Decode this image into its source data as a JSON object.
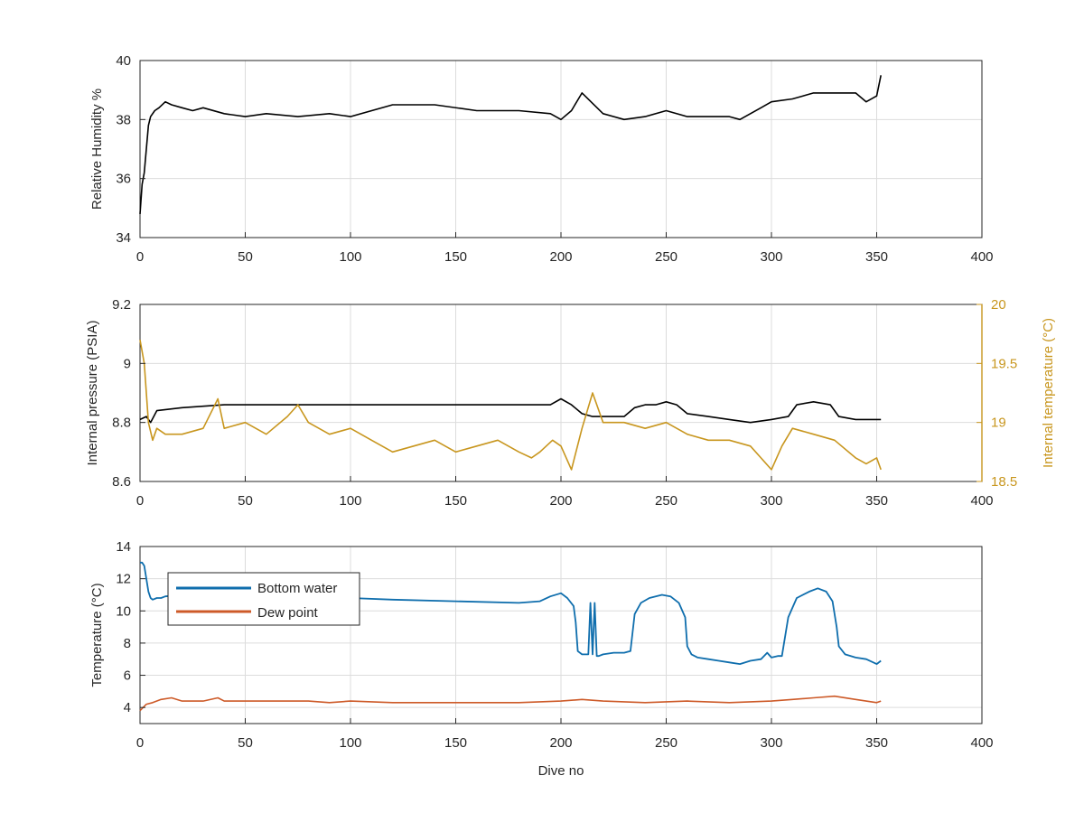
{
  "colors": {
    "humidity": "#000000",
    "pressure": "#000000",
    "internal_temp": "#c8961e",
    "bottom_water": "#0f6ead",
    "dew_point": "#cd5a28",
    "right_axis": "#c8961e"
  },
  "chart_data": [
    {
      "type": "line",
      "xlabel": "",
      "ylabel": "Relative Humidity %",
      "xlim": [
        0,
        400
      ],
      "ylim": [
        34,
        40
      ],
      "xticks": [
        0,
        50,
        100,
        150,
        200,
        250,
        300,
        350,
        400
      ],
      "yticks": [
        34,
        36,
        38,
        40
      ],
      "grid": true,
      "series": [
        {
          "x": [
            0,
            1,
            2,
            3,
            4,
            5,
            7,
            9,
            12,
            15,
            20,
            25,
            30,
            40,
            50,
            60,
            75,
            90,
            100,
            120,
            140,
            160,
            180,
            195,
            200,
            205,
            210,
            220,
            230,
            240,
            250,
            260,
            270,
            280,
            285,
            295,
            300,
            310,
            320,
            330,
            340,
            345,
            350,
            352
          ],
          "y": [
            34.8,
            35.8,
            36.2,
            37.0,
            37.8,
            38.1,
            38.3,
            38.4,
            38.6,
            38.5,
            38.4,
            38.3,
            38.4,
            38.2,
            38.1,
            38.2,
            38.1,
            38.2,
            38.1,
            38.5,
            38.5,
            38.3,
            38.3,
            38.2,
            38.0,
            38.3,
            38.9,
            38.2,
            38.0,
            38.1,
            38.3,
            38.1,
            38.1,
            38.1,
            38.0,
            38.4,
            38.6,
            38.7,
            38.9,
            38.9,
            38.9,
            38.6,
            38.8,
            39.5
          ]
        }
      ]
    },
    {
      "type": "line",
      "xlabel": "",
      "ylabel": "Internal pressure (PSIA)",
      "ylabel_right": "Internal temperature (°C)",
      "xlim": [
        0,
        400
      ],
      "ylim": [
        8.6,
        9.2
      ],
      "ylim_right": [
        18.5,
        20
      ],
      "xticks": [
        0,
        50,
        100,
        150,
        200,
        250,
        300,
        350,
        400
      ],
      "yticks": [
        8.6,
        8.8,
        9,
        9.2
      ],
      "yticks_labels": [
        "8.6",
        "8.8",
        "9",
        "9.2"
      ],
      "yticks_right": [
        18.5,
        19,
        19.5,
        20
      ],
      "yticks_right_labels": [
        "18.5",
        "19",
        "19.5",
        "20"
      ],
      "grid": true,
      "series": [
        {
          "axis": "left",
          "x": [
            0,
            3,
            5,
            8,
            20,
            40,
            60,
            80,
            100,
            120,
            140,
            160,
            180,
            195,
            200,
            205,
            210,
            215,
            230,
            235,
            240,
            245,
            250,
            255,
            260,
            270,
            280,
            290,
            300,
            308,
            312,
            320,
            328,
            332,
            340,
            352
          ],
          "y": [
            8.81,
            8.82,
            8.8,
            8.84,
            8.85,
            8.86,
            8.86,
            8.86,
            8.86,
            8.86,
            8.86,
            8.86,
            8.86,
            8.86,
            8.88,
            8.86,
            8.83,
            8.82,
            8.82,
            8.85,
            8.86,
            8.86,
            8.87,
            8.86,
            8.83,
            8.82,
            8.81,
            8.8,
            8.81,
            8.82,
            8.86,
            8.87,
            8.86,
            8.82,
            8.81,
            8.81
          ]
        },
        {
          "axis": "right",
          "x": [
            0,
            2,
            4,
            6,
            8,
            12,
            20,
            30,
            37,
            40,
            50,
            60,
            70,
            75,
            80,
            90,
            100,
            110,
            120,
            130,
            140,
            150,
            160,
            170,
            180,
            186,
            190,
            196,
            200,
            205,
            210,
            215,
            220,
            230,
            240,
            250,
            260,
            270,
            280,
            290,
            295,
            300,
            305,
            310,
            320,
            330,
            340,
            345,
            350,
            352
          ],
          "y": [
            19.7,
            19.5,
            19.0,
            18.85,
            18.95,
            18.9,
            18.9,
            18.95,
            19.2,
            18.95,
            19.0,
            18.9,
            19.05,
            19.15,
            19.0,
            18.9,
            18.95,
            18.85,
            18.75,
            18.8,
            18.85,
            18.75,
            18.8,
            18.85,
            18.75,
            18.7,
            18.75,
            18.85,
            18.8,
            18.6,
            18.95,
            19.25,
            19.0,
            19.0,
            18.95,
            19.0,
            18.9,
            18.85,
            18.85,
            18.8,
            18.7,
            18.6,
            18.8,
            18.95,
            18.9,
            18.85,
            18.7,
            18.65,
            18.7,
            18.6
          ]
        }
      ]
    },
    {
      "type": "line",
      "xlabel": "Dive no",
      "ylabel": "Temperature (°C)",
      "xlim": [
        0,
        400
      ],
      "ylim": [
        3,
        14
      ],
      "xticks": [
        0,
        50,
        100,
        150,
        200,
        250,
        300,
        350,
        400
      ],
      "yticks": [
        4,
        6,
        8,
        10,
        12,
        14
      ],
      "grid": true,
      "legend": "top-left",
      "series": [
        {
          "name": "Bottom water",
          "x": [
            0,
            1,
            2,
            3,
            4,
            5,
            6,
            8,
            10,
            12,
            20,
            30,
            40,
            50,
            60,
            80,
            100,
            120,
            150,
            180,
            190,
            195,
            200,
            203,
            206,
            207,
            208,
            210,
            213,
            214,
            215,
            216,
            217,
            218,
            220,
            225,
            230,
            233,
            235,
            238,
            242,
            248,
            252,
            256,
            259,
            260,
            262,
            265,
            270,
            275,
            280,
            285,
            290,
            295,
            298,
            300,
            303,
            305,
            308,
            312,
            318,
            322,
            326,
            329,
            331,
            332,
            335,
            340,
            345,
            350,
            352
          ],
          "y": [
            13.0,
            13.0,
            12.8,
            12.0,
            11.2,
            10.8,
            10.7,
            10.8,
            10.8,
            10.9,
            11.0,
            10.9,
            10.8,
            10.8,
            10.8,
            10.7,
            10.8,
            10.7,
            10.6,
            10.5,
            10.6,
            10.9,
            11.1,
            10.8,
            10.3,
            9.3,
            7.5,
            7.3,
            7.3,
            10.5,
            7.3,
            10.5,
            7.2,
            7.2,
            7.3,
            7.4,
            7.4,
            7.5,
            9.8,
            10.5,
            10.8,
            11.0,
            10.9,
            10.5,
            9.6,
            7.8,
            7.3,
            7.1,
            7.0,
            6.9,
            6.8,
            6.7,
            6.9,
            7.0,
            7.4,
            7.1,
            7.2,
            7.2,
            9.6,
            10.8,
            11.2,
            11.4,
            11.2,
            10.6,
            9.0,
            7.8,
            7.3,
            7.1,
            7.0,
            6.7,
            6.9
          ]
        },
        {
          "name": "Dew point",
          "x": [
            0,
            3,
            6,
            10,
            15,
            20,
            30,
            37,
            40,
            50,
            60,
            70,
            80,
            90,
            100,
            120,
            140,
            160,
            180,
            200,
            210,
            220,
            240,
            260,
            280,
            300,
            310,
            320,
            330,
            340,
            350,
            352
          ],
          "y": [
            3.8,
            4.2,
            4.3,
            4.5,
            4.6,
            4.4,
            4.4,
            4.6,
            4.4,
            4.4,
            4.4,
            4.4,
            4.4,
            4.3,
            4.4,
            4.3,
            4.3,
            4.3,
            4.3,
            4.4,
            4.5,
            4.4,
            4.3,
            4.4,
            4.3,
            4.4,
            4.5,
            4.6,
            4.7,
            4.5,
            4.3,
            4.4
          ]
        }
      ]
    }
  ]
}
